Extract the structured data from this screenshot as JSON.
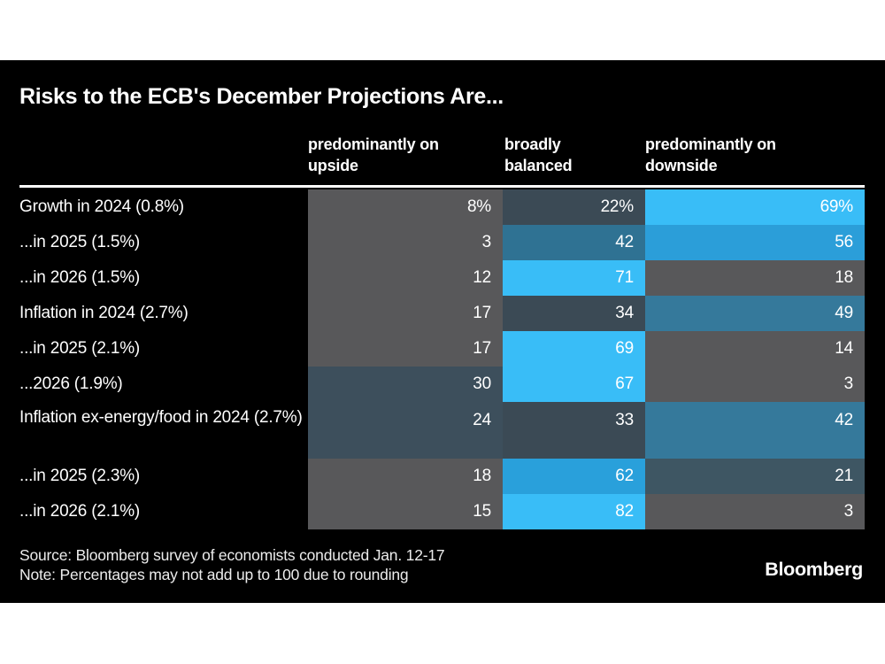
{
  "title": "Risks to the ECB's December Projections Are...",
  "header": {
    "col1": {
      "line1": "predominantly on",
      "line2": "upside"
    },
    "col2": {
      "line1": "broadly",
      "line2": "balanced"
    },
    "col3": {
      "line1": "predominantly on",
      "line2": "downside"
    }
  },
  "chart_data": {
    "type": "heatmap",
    "title": "Risks to the ECB's December Projections Are...",
    "columns": [
      "predominantly on upside",
      "broadly balanced",
      "predominantly on downside"
    ],
    "value_unit": "%",
    "rows": [
      {
        "label": "Growth in 2024 (0.8%)",
        "values": [
          8,
          22,
          69
        ],
        "display": [
          "8%",
          "22%",
          "69%"
        ],
        "colors": [
          "#58585a",
          "#3b4a55",
          "#39bdf7"
        ]
      },
      {
        "label": "...in 2025 (1.5%)",
        "values": [
          3,
          42,
          56
        ],
        "display": [
          "3",
          "42",
          "56"
        ],
        "colors": [
          "#58585a",
          "#2f7293",
          "#2b9ed9"
        ]
      },
      {
        "label": "...in 2026 (1.5%)",
        "values": [
          12,
          71,
          18
        ],
        "display": [
          "12",
          "71",
          "18"
        ],
        "colors": [
          "#58585a",
          "#39bdf7",
          "#58585a"
        ]
      },
      {
        "label": "Inflation in 2024 (2.7%)",
        "values": [
          17,
          34,
          49
        ],
        "display": [
          "17",
          "34",
          "49"
        ],
        "colors": [
          "#58585a",
          "#3b4a55",
          "#35799b"
        ]
      },
      {
        "label": "...in 2025 (2.1%)",
        "values": [
          17,
          69,
          14
        ],
        "display": [
          "17",
          "69",
          "14"
        ],
        "colors": [
          "#58585a",
          "#39bdf7",
          "#58585a"
        ]
      },
      {
        "label": "...2026 (1.9%)",
        "values": [
          30,
          67,
          3
        ],
        "display": [
          "30",
          "67",
          "3"
        ],
        "colors": [
          "#3d4f5c",
          "#39bdf7",
          "#58585a"
        ]
      },
      {
        "label": "Inflation ex-energy/food in 2024 (2.7%)",
        "values": [
          24,
          33,
          42
        ],
        "display": [
          "24",
          "33",
          "42"
        ],
        "colors": [
          "#3d4f5c",
          "#3b4a55",
          "#35799b"
        ]
      },
      {
        "label": "...in 2025 (2.3%)",
        "values": [
          18,
          62,
          21
        ],
        "display": [
          "18",
          "62",
          "21"
        ],
        "colors": [
          "#58585a",
          "#29a0db",
          "#3e5663"
        ]
      },
      {
        "label": "...in 2026 (2.1%)",
        "values": [
          15,
          82,
          3
        ],
        "display": [
          "15",
          "82",
          "3"
        ],
        "colors": [
          "#58585a",
          "#39bdf7",
          "#58585a"
        ]
      }
    ]
  },
  "footer": {
    "source": "Source: Bloomberg survey of economists conducted Jan. 12-17",
    "note": "Note: Percentages may not add up to 100 due to rounding",
    "logo": "Bloomberg"
  },
  "colors": {
    "panel_background": "#000000",
    "page_margin": "#ffffff",
    "text": "#ffffff",
    "cell_neutral_gray": "#58585a",
    "cell_dark_slate": "#3b4a55",
    "cell_slate": "#3d4f5c",
    "cell_teal": "#2f7293",
    "cell_medium_blue": "#2b9ed9",
    "cell_light_blue": "#39bdf7"
  }
}
